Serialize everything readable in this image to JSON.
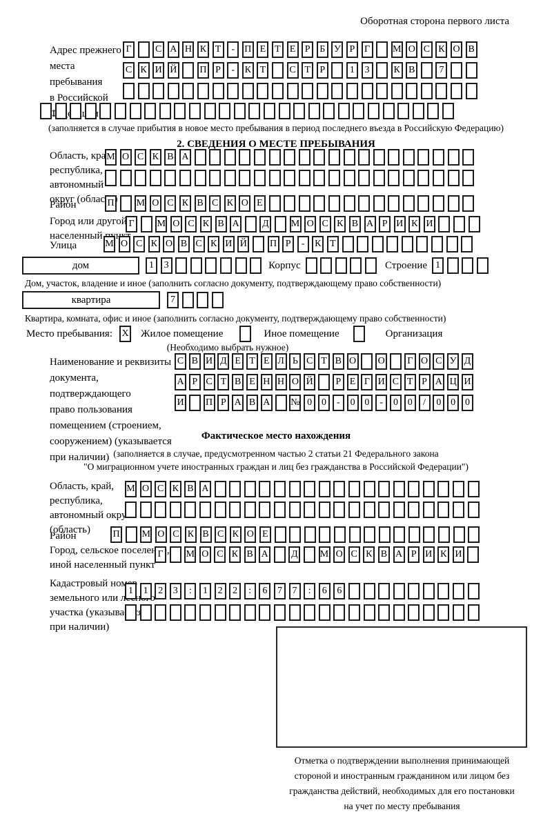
{
  "page": {
    "header_note": "Оборотная сторона первого листа"
  },
  "prev_address": {
    "label_lines": [
      "Адрес прежнего",
      "места пребывания",
      "в Российской",
      "Федерации"
    ],
    "rows": [
      {
        "cells": "Г САНКТ-ПЕТЕРБУРГ МОСКОВ",
        "count": 24
      },
      {
        "cells": "СКИЙ ПР-КТ СТР 13 КВ 7",
        "count": 24
      },
      {
        "cells": "",
        "count": 24
      },
      {
        "cells": "",
        "count": 28
      }
    ],
    "note": "(заполняется в случае прибытия в новое место пребывания в период последнего въезда в Российскую Федерацию)"
  },
  "section2": {
    "title": "2. СВЕДЕНИЯ О МЕСТЕ ПРЕБЫВАНИЯ",
    "region": {
      "label_lines": [
        "Область, край,",
        "республика,",
        "автономный",
        "округ (область)"
      ],
      "rows": [
        {
          "cells": "МОСКВА",
          "count": 25
        },
        {
          "cells": "",
          "count": 25
        }
      ]
    },
    "district": {
      "label": "Район",
      "row": {
        "cells": "П МОСКВСКОЕ",
        "count": 25
      }
    },
    "city": {
      "label_lines": [
        "Город или другой",
        "населенный пункт"
      ],
      "row": {
        "cells": "Г МОСКВА Д МОСКВАРИКИ",
        "count": 24
      }
    },
    "street": {
      "label": "Улица",
      "row": {
        "cells": "МОСКОВСКИЙ ПР-КТ",
        "count": 25
      }
    },
    "house": {
      "box_label": "дом",
      "cells": {
        "cells": "13",
        "count": 8
      },
      "korpus_label": "Корпус",
      "korpus_cells": {
        "cells": "",
        "count": 5
      },
      "stroenie_label": "Строение",
      "stroenie_cells": {
        "cells": "1",
        "count": 4
      },
      "note": "Дом, участок, владение и иное (заполнить согласно документу, подтверждающему право собственности)"
    },
    "apartment": {
      "box_label": "квартира",
      "cells": {
        "cells": "7",
        "count": 4
      },
      "note": "Квартира, комната, офис и иное (заполнить согласно документу, подтверждающему право собственности)"
    },
    "stay_type": {
      "label": "Место пребывания:",
      "options": [
        {
          "label": "Жилое помещение",
          "checked": "X"
        },
        {
          "label": "Иное помещение",
          "checked": ""
        },
        {
          "label": "Организация",
          "checked": ""
        }
      ],
      "note": "(Необходимо выбрать нужное)"
    },
    "doc": {
      "label_lines": [
        "Наименование и реквизиты",
        "документа, подтверждающего",
        "право пользования",
        "помещением (строением,",
        "сооружением) (указывается",
        "при наличии)"
      ],
      "rows": [
        {
          "cells": "СВИДЕТЕЛЬСТВО О ГОСУД",
          "count": 21
        },
        {
          "cells": "АРСТВЕННОЙ РЕГИСТРАЦИ",
          "count": 21
        },
        {
          "cells": "И ПРАВА №00-00-00/000",
          "count": 21
        }
      ]
    }
  },
  "actual_location": {
    "title": "Фактическое место нахождения",
    "note_lines": [
      "(заполняется в случае, предусмотренном частью 2 статьи 21 Федерального закона",
      "\"О миграционном учете иностранных граждан и лиц без гражданства в Российской Федерации\")"
    ],
    "region": {
      "label_lines": [
        "Область, край,",
        "республика,",
        "автономный округ",
        "(область)"
      ],
      "rows": [
        {
          "cells": "МОСКВА",
          "count": 24
        },
        {
          "cells": "",
          "count": 24
        }
      ]
    },
    "district": {
      "label": "Район",
      "row": {
        "cells": "П МОСКВСКОЕ",
        "count": 25
      }
    },
    "city": {
      "label_lines": [
        "Город, сельское поселение,",
        "иной населенный пункт"
      ],
      "row": {
        "cells": "Г МОСКВА Д МОСКВАРИКИ",
        "count": 22
      }
    },
    "cadastral": {
      "label_lines": [
        "Кадастровый номер",
        "земельного или лесного",
        "участка (указывается",
        "при наличии)"
      ],
      "rows": [
        {
          "cells": "1123:122:677:66",
          "count": 24
        },
        {
          "cells": "",
          "count": 24
        }
      ]
    },
    "stamp_note_lines": [
      "Отметка о подтверждении выполнения принимающей",
      "стороной и иностранным гражданином или лицом без",
      "гражданства действий, необходимых для его постановки",
      "на учет по месту пребывания"
    ]
  }
}
